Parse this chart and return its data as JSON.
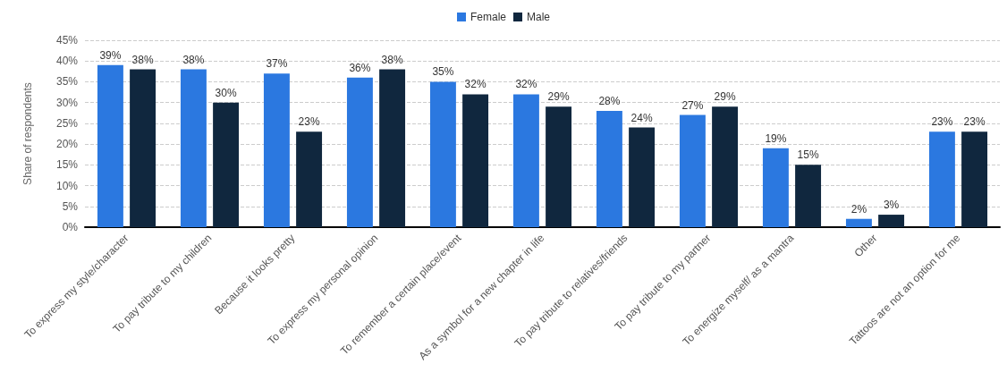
{
  "chart_data": {
    "type": "bar",
    "ylabel": "Share of respondents",
    "categories": [
      "To express my style/character",
      "To pay tribute to my children",
      "Because it looks pretty",
      "To express my personal opinion",
      "To remember a certain place/event",
      "As a symbol for a new chapter in life",
      "To pay tribute to relatives/friends",
      "To pay tribute to my partner",
      "To energize myself/ as a mantra",
      "Other",
      "Tattoos are not an option for me"
    ],
    "series": [
      {
        "name": "Female",
        "color": "#2b78e0",
        "values": [
          39,
          38,
          37,
          36,
          35,
          32,
          28,
          27,
          19,
          2,
          23
        ],
        "value_labels": [
          "39%",
          "38%",
          "37%",
          "36%",
          "35%",
          "32%",
          "28%",
          "27%",
          "19%",
          "2%",
          "23%"
        ]
      },
      {
        "name": "Male",
        "color": "#10273e",
        "values": [
          38,
          30,
          23,
          38,
          32,
          29,
          24,
          29,
          15,
          3,
          23
        ],
        "value_labels": [
          "38%",
          "30%",
          "23%",
          "38%",
          "32%",
          "29%",
          "24%",
          "29%",
          "15%",
          "3%",
          "23%"
        ]
      }
    ],
    "ylim": [
      0,
      45
    ],
    "yticks": [
      {
        "value": 0,
        "label": "0%"
      },
      {
        "value": 5,
        "label": "5%"
      },
      {
        "value": 10,
        "label": "10%"
      },
      {
        "value": 15,
        "label": "15%"
      },
      {
        "value": 20,
        "label": "20%"
      },
      {
        "value": 25,
        "label": "25%"
      },
      {
        "value": 30,
        "label": "30%"
      },
      {
        "value": 35,
        "label": "35%"
      },
      {
        "value": 40,
        "label": "40%"
      },
      {
        "value": 45,
        "label": "45%"
      }
    ],
    "grid": "y",
    "legend": "top"
  }
}
